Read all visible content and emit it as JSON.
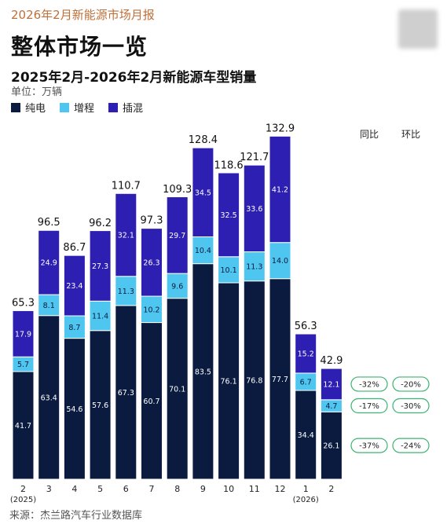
{
  "header": {
    "report_label": "2026年2月新能源市场月报",
    "title": "整体市场一览",
    "subtitle": "2025年2月-2026年2月新能源车型销量",
    "unit": "单位：万辆"
  },
  "legend": [
    {
      "name": "纯电",
      "color": "#0b1b3f"
    },
    {
      "name": "增程",
      "color": "#4fc6f0"
    },
    {
      "name": "插混",
      "color": "#2e1fb3"
    }
  ],
  "comparison": {
    "yoy_label": "同比",
    "mom_label": "环比",
    "rows": [
      {
        "series": "插混",
        "yoy": "-32%",
        "mom": "-20%"
      },
      {
        "series": "增程",
        "yoy": "-17%",
        "mom": "-30%"
      },
      {
        "series": "纯电",
        "yoy": "-37%",
        "mom": "-24%"
      }
    ],
    "badge_color": "#3cb371"
  },
  "source": "来源：杰兰路汽车行业数据库",
  "chart_data": {
    "type": "bar",
    "stacked": true,
    "categories": [
      "2",
      "3",
      "4",
      "5",
      "6",
      "7",
      "8",
      "9",
      "10",
      "11",
      "12",
      "1",
      "2"
    ],
    "category_sublabels": [
      "(2025)",
      "",
      "",
      "",
      "",
      "",
      "",
      "",
      "",
      "",
      "",
      "(2026)",
      ""
    ],
    "series": [
      {
        "name": "纯电",
        "values": [
          41.7,
          63.4,
          54.6,
          57.6,
          67.3,
          60.7,
          70.1,
          83.5,
          76.1,
          76.8,
          77.7,
          34.4,
          26.1
        ]
      },
      {
        "name": "增程",
        "values": [
          5.7,
          8.1,
          8.7,
          11.4,
          11.3,
          10.2,
          9.6,
          10.4,
          10.1,
          11.3,
          14.0,
          6.7,
          4.7
        ]
      },
      {
        "name": "插混",
        "values": [
          17.9,
          24.9,
          23.4,
          27.3,
          32.1,
          26.3,
          29.7,
          34.5,
          32.5,
          33.6,
          41.2,
          15.2,
          12.1
        ]
      }
    ],
    "totals": [
      65.3,
      96.5,
      86.7,
      96.2,
      110.7,
      97.3,
      109.3,
      128.4,
      118.6,
      121.7,
      132.9,
      56.3,
      42.9
    ],
    "ylim": [
      0,
      140
    ],
    "grid": false,
    "legend_position": "top-left"
  }
}
